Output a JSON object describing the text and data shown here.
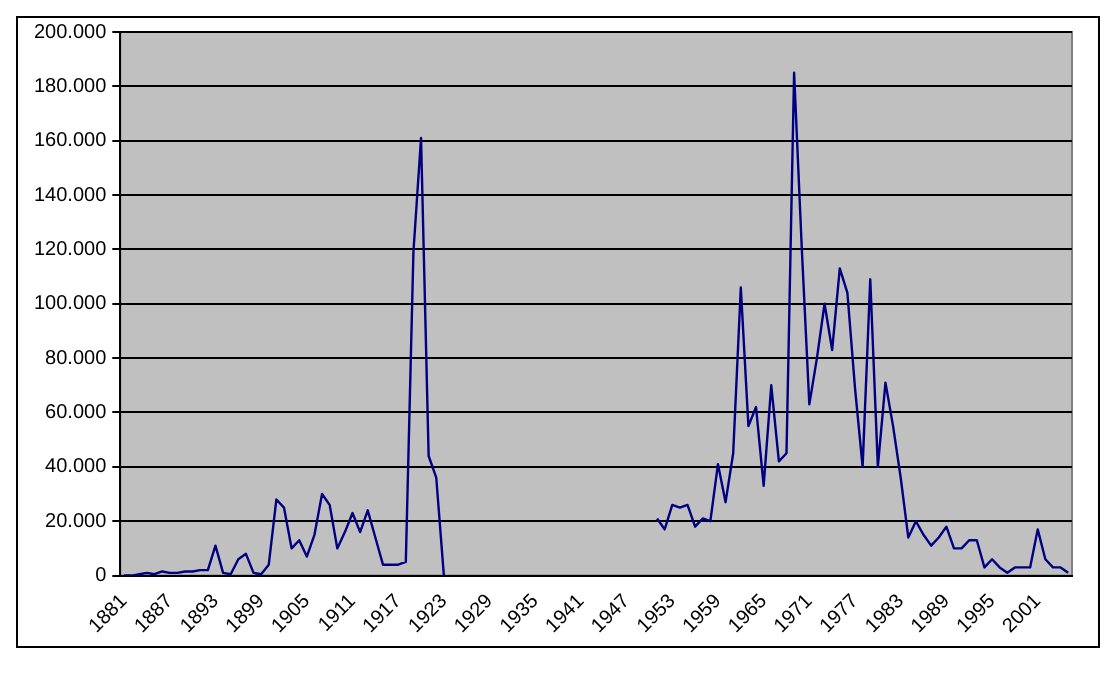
{
  "chart_data": {
    "type": "line",
    "categories": [
      "1881",
      null,
      null,
      null,
      null,
      null,
      "1887",
      null,
      null,
      null,
      null,
      null,
      "1893",
      null,
      null,
      null,
      null,
      null,
      "1899",
      null,
      null,
      null,
      null,
      null,
      "1905",
      null,
      null,
      null,
      null,
      null,
      "1911",
      null,
      null,
      null,
      null,
      null,
      "1917",
      null,
      null,
      null,
      null,
      null,
      "1923",
      null,
      null,
      null,
      null,
      null,
      "1929",
      null,
      null,
      null,
      null,
      null,
      "1935",
      null,
      null,
      null,
      null,
      null,
      "1941",
      null,
      null,
      null,
      null,
      null,
      "1947",
      null,
      null,
      null,
      null,
      null,
      "1953",
      null,
      null,
      null,
      null,
      null,
      "1959",
      null,
      null,
      null,
      null,
      null,
      "1965",
      null,
      null,
      null,
      null,
      null,
      "1971",
      null,
      null,
      null,
      null,
      null,
      "1977",
      null,
      null,
      null,
      null,
      null,
      "1983",
      null,
      null,
      null,
      null,
      null,
      "1989",
      null,
      null,
      null,
      null,
      null,
      "1995",
      null,
      null,
      null,
      null,
      null,
      "2001",
      null,
      null,
      null,
      null
    ],
    "series": [
      {
        "color": "#000080",
        "values": [
          0,
          0,
          500,
          1000,
          500,
          1500,
          1000,
          1000,
          1500,
          1500,
          2000,
          2000,
          11000,
          1000,
          500,
          6000,
          8000,
          1000,
          500,
          4000,
          28000,
          25000,
          10000,
          13000,
          7000,
          15000,
          30000,
          26000,
          10000,
          16000,
          23000,
          16000,
          24000,
          14000,
          4000,
          4000,
          4000,
          5000,
          119000,
          161000,
          44000,
          36000,
          0,
          null,
          null,
          null,
          null,
          null,
          null,
          null,
          null,
          null,
          null,
          null,
          null,
          null,
          null,
          null,
          null,
          null,
          null,
          null,
          null,
          null,
          null,
          null,
          null,
          null,
          null,
          null,
          21000,
          17000,
          26000,
          25000,
          26000,
          18000,
          21000,
          20000,
          41000,
          27000,
          45000,
          106000,
          55000,
          62000,
          33000,
          70000,
          42000,
          45000,
          185000,
          121000,
          63000,
          80000,
          100000,
          83000,
          113000,
          104000,
          69000,
          40000,
          109000,
          40000,
          71000,
          55000,
          36000,
          14000,
          20000,
          15000,
          11000,
          14000,
          18000,
          10000,
          10000,
          13000,
          13000,
          3000,
          6000,
          3000,
          1000,
          3000,
          3000,
          3000,
          17000,
          6000,
          3000,
          3000,
          1000
        ]
      }
    ],
    "ylim": [
      0,
      200000
    ],
    "yticks": [
      0,
      {
        "value": 20000,
        "label": "20.000"
      },
      {
        "value": 40000,
        "label": "40.000"
      },
      {
        "value": 60000,
        "label": "60.000"
      },
      {
        "value": 80000,
        "label": "80.000"
      },
      {
        "value": 100000,
        "label": "100.000"
      },
      {
        "value": 120000,
        "label": "120.000"
      },
      {
        "value": 140000,
        "label": "140.000"
      },
      {
        "value": 160000,
        "label": "160.000"
      },
      {
        "value": 180000,
        "label": "180.000"
      },
      {
        "value": 200000,
        "label": "200.000"
      }
    ],
    "grid": "y",
    "legend": false,
    "marker": "none",
    "line_style": "solid"
  }
}
